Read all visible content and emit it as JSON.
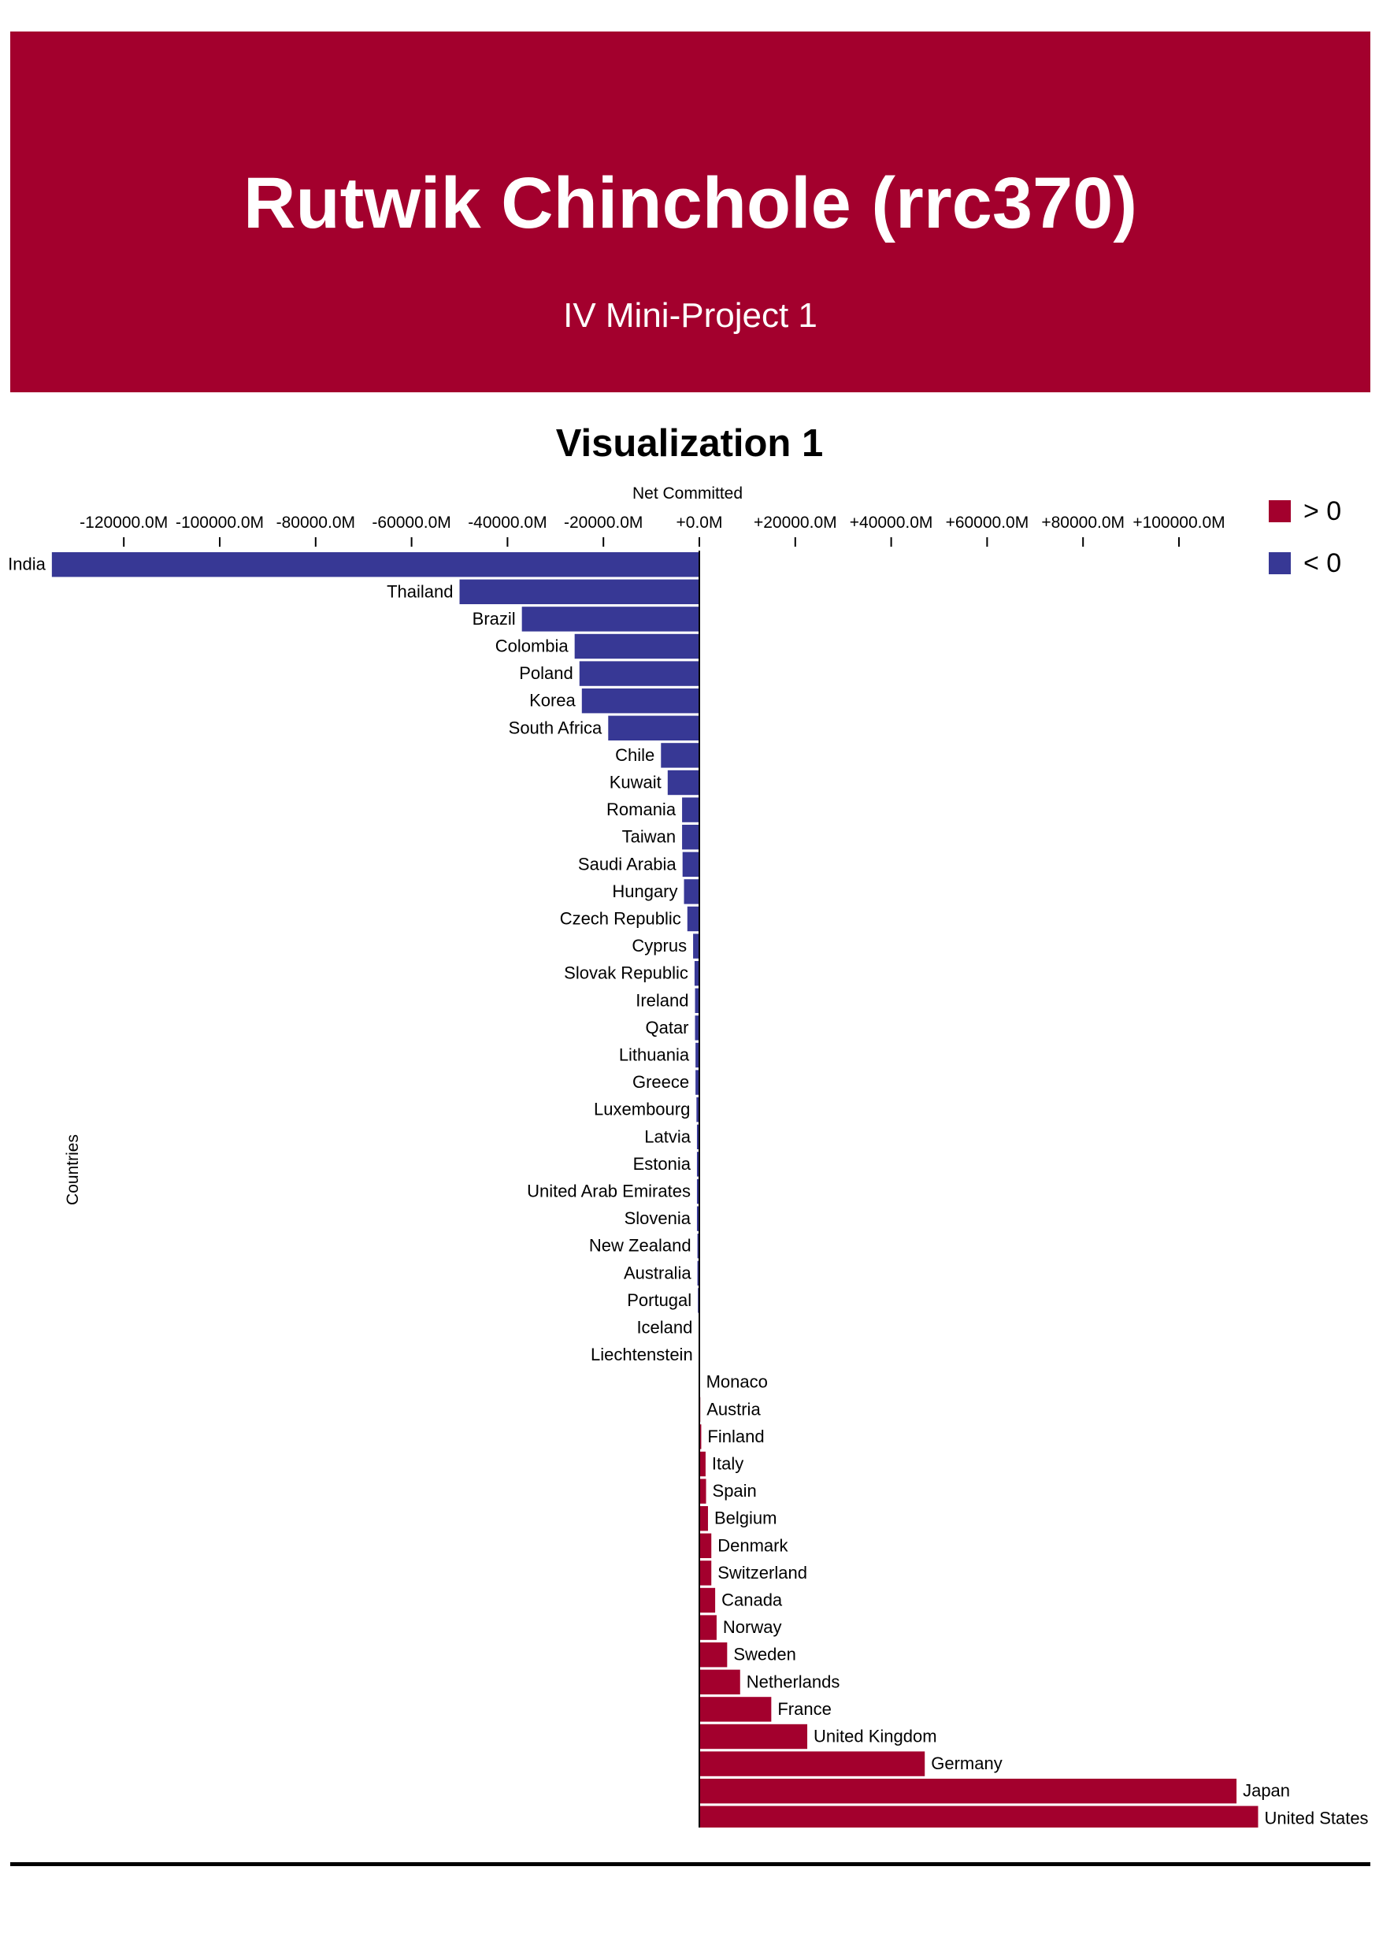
{
  "header": {
    "title": "Rutwik Chinchole (rrc370)",
    "subtitle": "IV Mini-Project 1"
  },
  "section": {
    "title": "Visualization 1"
  },
  "colors": {
    "positive": "#a3002d",
    "negative": "#373895",
    "banner": "#a3002d"
  },
  "chart_data": {
    "type": "bar",
    "orientation": "horizontal",
    "xlabel": "Net Committed",
    "ylabel": "Countries",
    "xlim": [
      -127000,
      105000
    ],
    "x_ticks": [
      -120000,
      -100000,
      -80000,
      -60000,
      -40000,
      -20000,
      0,
      20000,
      40000,
      60000,
      80000,
      100000
    ],
    "x_tick_labels": [
      "-120000.0M",
      "-100000.0M",
      "-80000.0M",
      "-60000.0M",
      "-40000.0M",
      "-20000.0M",
      "+0.0M",
      "+20000.0M",
      "+40000.0M",
      "+60000.0M",
      "+80000.0M",
      "+100000.0M"
    ],
    "legend": [
      {
        "label": "> 0",
        "color": "#a3002d"
      },
      {
        "label": "< 0",
        "color": "#373895"
      }
    ],
    "legend_position": "top-right",
    "grid": false,
    "categories": [
      "India",
      "Thailand",
      "Brazil",
      "Colombia",
      "Poland",
      "Korea",
      "South Africa",
      "Chile",
      "Kuwait",
      "Romania",
      "Taiwan",
      "Saudi Arabia",
      "Hungary",
      "Czech Republic",
      "Cyprus",
      "Slovak Republic",
      "Ireland",
      "Qatar",
      "Lithuania",
      "Greece",
      "Luxembourg",
      "Latvia",
      "Estonia",
      "United Arab Emirates",
      "Slovenia",
      "New Zealand",
      "Australia",
      "Portugal",
      "Iceland",
      "Liechtenstein",
      "Monaco",
      "Austria",
      "Finland",
      "Italy",
      "Spain",
      "Belgium",
      "Denmark",
      "Switzerland",
      "Canada",
      "Norway",
      "Sweden",
      "Netherlands",
      "France",
      "United Kingdom",
      "Germany",
      "Japan",
      "United States"
    ],
    "values": [
      -135000,
      -50000,
      -37000,
      -26000,
      -25000,
      -24500,
      -19000,
      -8000,
      -6600,
      -3600,
      -3600,
      -3500,
      -3200,
      -2500,
      -1300,
      -1000,
      -900,
      -900,
      -800,
      -800,
      -600,
      -500,
      -500,
      -500,
      -500,
      -400,
      -400,
      -300,
      -100,
      -50,
      100,
      200,
      400,
      1300,
      1400,
      1800,
      2500,
      2500,
      3300,
      3600,
      5800,
      8500,
      15000,
      22500,
      47000,
      112000,
      116500
    ]
  }
}
